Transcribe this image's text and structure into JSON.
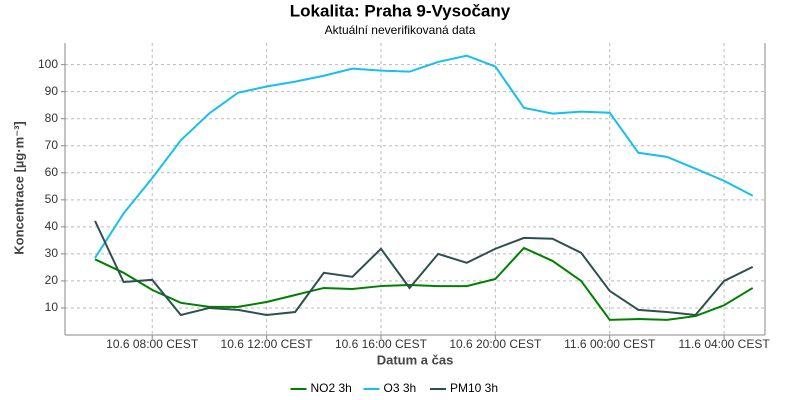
{
  "chart_data": {
    "type": "line",
    "title": "Lokalita: Praha 9-Vysočany",
    "subtitle": "Aktuální neverifikovaná data",
    "x_label": "Datum a čas",
    "y_label": "Koncentrace [µg·m⁻³]",
    "x": [
      6,
      7,
      8,
      9,
      10,
      11,
      12,
      13,
      14,
      15,
      16,
      17,
      18,
      19,
      20,
      21,
      22,
      23,
      24,
      25,
      26,
      27,
      28,
      29
    ],
    "xlim": [
      4.95,
      29.43
    ],
    "xticks": [
      {
        "value": 8,
        "label": "10.6 08:00 CEST"
      },
      {
        "value": 12,
        "label": "10.6 12:00 CEST"
      },
      {
        "value": 16,
        "label": "10.6 16:00 CEST"
      },
      {
        "value": 20,
        "label": "10.6 20:00 CEST"
      },
      {
        "value": 24,
        "label": "11.6 00:00 CEST"
      },
      {
        "value": 28,
        "label": "11.6 04:00 CEST"
      }
    ],
    "ylim": [
      0,
      108
    ],
    "yticks": [
      10,
      20,
      30,
      40,
      50,
      60,
      70,
      80,
      90,
      100
    ],
    "grid": true,
    "legend": "bottom",
    "series": [
      {
        "name": "NO2 3h",
        "color": "#008000",
        "values": [
          28,
          23,
          16.7,
          11.9,
          10.4,
          10.4,
          12.2,
          14.8,
          17.4,
          17,
          18.1,
          18.5,
          18.1,
          18.1,
          20.7,
          32.2,
          27.4,
          20,
          5.6,
          5.9,
          5.6,
          7,
          11,
          17.4
        ]
      },
      {
        "name": "O3 3h",
        "color": "#16bff0",
        "values": [
          28.5,
          45,
          58,
          72,
          82,
          89.6,
          91.9,
          93.7,
          95.9,
          98.5,
          97.8,
          97.4,
          101,
          103.3,
          99.3,
          84,
          81.9,
          82.6,
          82.2,
          67.4,
          65.9,
          61.5,
          57,
          51.5
        ]
      },
      {
        "name": "PM10 3h",
        "color": "#2f4f4f",
        "values": [
          42.2,
          19.6,
          20.4,
          7.4,
          10,
          9.3,
          7.4,
          8.5,
          23,
          21.5,
          31.9,
          17.4,
          30,
          26.7,
          31.9,
          35.9,
          35.6,
          30.4,
          16.3,
          9.3,
          8.5,
          7.4,
          20,
          25.2
        ]
      }
    ]
  }
}
